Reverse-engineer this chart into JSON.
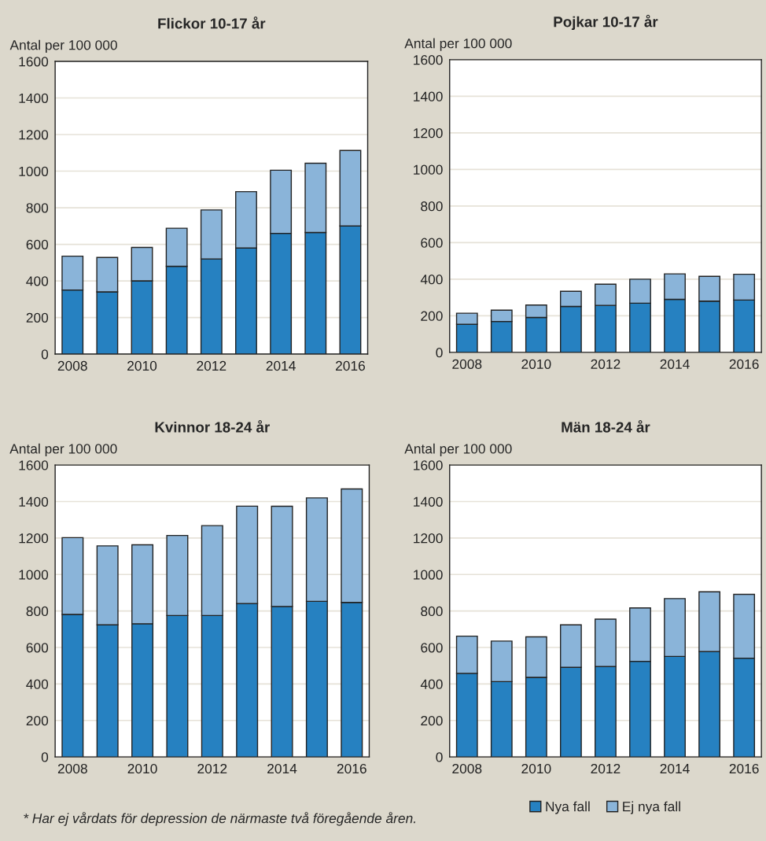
{
  "chart_data": [
    {
      "type": "bar",
      "title": "Flickor 10-17 år",
      "ylabel": "Antal per 100 000",
      "stacked": true,
      "categories": [
        "2008",
        null,
        "2010",
        null,
        "2012",
        null,
        "2014",
        null,
        "2016"
      ],
      "series": [
        {
          "color": "#2681c1",
          "values": [
            350,
            340,
            400,
            480,
            520,
            580,
            660,
            665,
            700
          ]
        },
        {
          "color": "#8ab4d9",
          "values": [
            185,
            188,
            183,
            208,
            268,
            308,
            345,
            378,
            413
          ]
        }
      ],
      "ylim": [
        0,
        1600
      ],
      "yticks": [
        0,
        200,
        400,
        600,
        800,
        1000,
        1200,
        1400,
        1600
      ],
      "grid": "y"
    },
    {
      "type": "bar",
      "title": "Pojkar 10-17 år",
      "ylabel": "Antal per 100 000",
      "stacked": true,
      "categories": [
        "2008",
        null,
        "2010",
        null,
        "2012",
        null,
        "2014",
        null,
        "2016"
      ],
      "series": [
        {
          "color": "#2681c1",
          "values": [
            154,
            169,
            191,
            251,
            257,
            269,
            290,
            280,
            286
          ]
        },
        {
          "color": "#8ab4d9",
          "values": [
            60,
            62,
            68,
            83,
            116,
            131,
            139,
            136,
            141
          ]
        }
      ],
      "ylim": [
        0,
        1600
      ],
      "yticks": [
        0,
        200,
        400,
        600,
        800,
        1000,
        1200,
        1400,
        1600
      ],
      "grid": "y"
    },
    {
      "type": "bar",
      "title": "Kvinnor 18-24 år",
      "ylabel": "Antal per 100 000",
      "stacked": true,
      "categories": [
        "2008",
        null,
        "2010",
        null,
        "2012",
        null,
        "2014",
        null,
        "2016"
      ],
      "series": [
        {
          "color": "#2681c1",
          "values": [
            781,
            724,
            730,
            775,
            775,
            841,
            825,
            853,
            847
          ]
        },
        {
          "color": "#8ab4d9",
          "values": [
            421,
            433,
            433,
            439,
            493,
            534,
            549,
            567,
            622
          ]
        }
      ],
      "ylim": [
        0,
        1600
      ],
      "yticks": [
        0,
        200,
        400,
        600,
        800,
        1000,
        1200,
        1400,
        1600
      ],
      "grid": "y",
      "annotations": [
        "* Har ej vårdats för depression de närmaste två föregående åren."
      ]
    },
    {
      "type": "bar",
      "title": "Män 18-24 år",
      "ylabel": "Antal per 100 000",
      "stacked": true,
      "categories": [
        "2008",
        null,
        "2010",
        null,
        "2012",
        null,
        "2014",
        null,
        "2016"
      ],
      "series": [
        {
          "name": "Nya fall",
          "color": "#2681c1",
          "values": [
            458,
            413,
            436,
            491,
            496,
            524,
            551,
            578,
            541
          ]
        },
        {
          "name": "Ej nya fall",
          "color": "#8ab4d9",
          "values": [
            204,
            222,
            222,
            233,
            259,
            293,
            317,
            327,
            350
          ]
        }
      ],
      "ylim": [
        0,
        1600
      ],
      "yticks": [
        0,
        200,
        400,
        600,
        800,
        1000,
        1200,
        1400,
        1600
      ],
      "grid": "y",
      "legend": "bottom"
    }
  ]
}
